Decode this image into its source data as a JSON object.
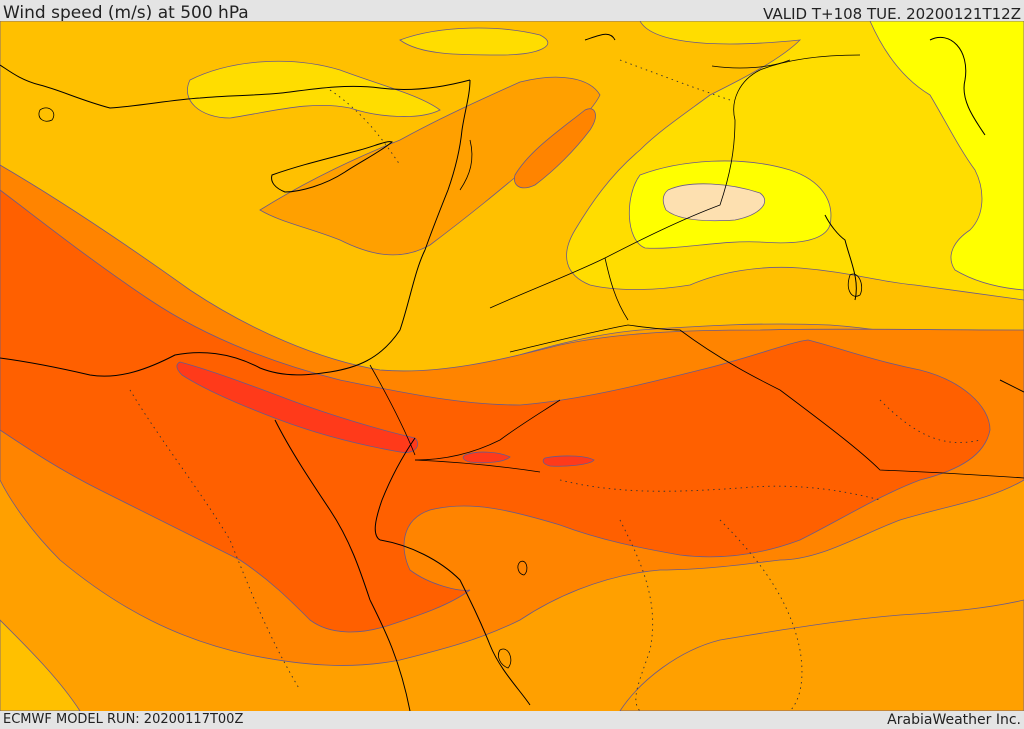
{
  "header": {
    "title": "Wind speed (m/s) at 500 hPa",
    "valid_time": "VALID T+108 TUE. 20200121T12Z"
  },
  "footer": {
    "model_run": "ECMWF MODEL RUN: 20200117T00Z",
    "credit": "ArabiaWeather Inc."
  },
  "map": {
    "field": "wind speed at 500 hPa",
    "colors": {
      "light_yellow": "#ffff00",
      "yellow": "#ffdd00",
      "gold": "#ffc000",
      "light_orange": "#ffa000",
      "orange": "#ff8400",
      "dark_orange": "#ff6000",
      "red_orange": "#ff3a1a",
      "pale_core": "#fde0b0",
      "contour": "#6a5a8a",
      "coast": "#000000"
    }
  }
}
